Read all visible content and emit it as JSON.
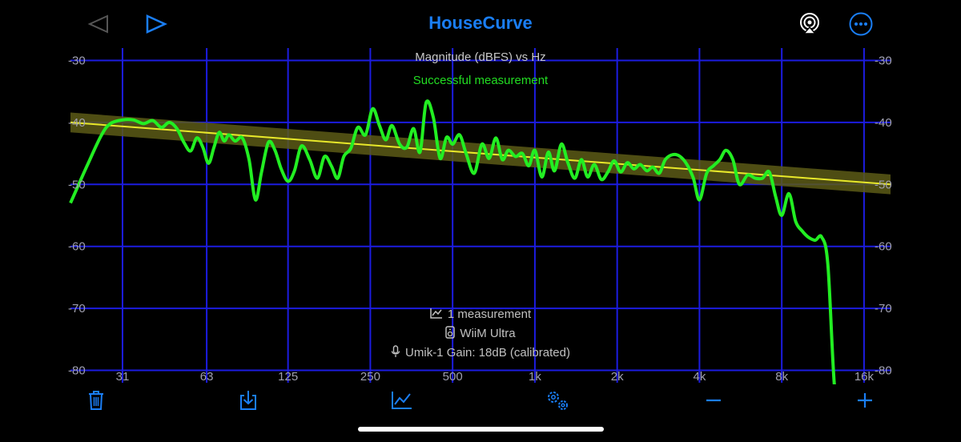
{
  "app": {
    "title": "HouseCurve"
  },
  "icons": {
    "back": "triangle-left-icon",
    "forward": "triangle-right-icon",
    "airplay": "airplay-icon",
    "more": "more-ellipsis-icon",
    "trash": "trash-icon",
    "save": "download-tray-icon",
    "measurements": "chart-line-icon",
    "settings": "gears-icon",
    "zoom_out": "minus-icon",
    "zoom_in": "plus-icon",
    "measurement_info": "chart-small-icon",
    "device_info": "speaker-icon",
    "mic_info": "microphone-icon"
  },
  "colors": {
    "accent": "#1a7ef5",
    "grid": "#1c1ce0",
    "measurement": "#22ee22",
    "target": "#e8e82a",
    "target_band": "#5c5a16",
    "status": "#22dd22"
  },
  "info": {
    "measurement_count": "1 measurement",
    "device": "WiiM Ultra",
    "mic": "Umik-1  Gain: 18dB (calibrated)"
  },
  "chart_data": {
    "type": "line",
    "title": "Magnitude (dBFS) vs Hz",
    "status": "Successful measurement",
    "x_scale": "log",
    "xlim": [
      20,
      20000
    ],
    "ylim": [
      -82,
      -28
    ],
    "x_ticks": [
      {
        "value": 31,
        "label": "31"
      },
      {
        "value": 63,
        "label": "63"
      },
      {
        "value": 125,
        "label": "125"
      },
      {
        "value": 250,
        "label": "250"
      },
      {
        "value": 500,
        "label": "500"
      },
      {
        "value": 1000,
        "label": "1k"
      },
      {
        "value": 2000,
        "label": "2k"
      },
      {
        "value": 4000,
        "label": "4k"
      },
      {
        "value": 8000,
        "label": "8k"
      },
      {
        "value": 16000,
        "label": "16k"
      }
    ],
    "y_ticks": [
      -30,
      -40,
      -50,
      -60,
      -70,
      -80
    ],
    "grid": true,
    "series": [
      {
        "role": "target",
        "x": [
          20,
          20000
        ],
        "y": [
          -40,
          -50
        ],
        "band": 1.6
      },
      {
        "role": "measurement",
        "x": [
          20,
          23,
          26,
          28,
          31,
          34,
          37,
          40,
          43,
          46,
          49,
          52,
          55,
          58,
          61,
          64,
          67,
          70,
          73,
          76,
          80,
          85,
          90,
          95,
          100,
          106,
          112,
          118,
          125,
          132,
          140,
          150,
          160,
          170,
          180,
          190,
          200,
          212,
          225,
          240,
          255,
          270,
          285,
          300,
          320,
          340,
          360,
          380,
          400,
          425,
          450,
          475,
          500,
          530,
          560,
          600,
          640,
          680,
          720,
          760,
          800,
          850,
          900,
          950,
          1000,
          1060,
          1120,
          1180,
          1250,
          1320,
          1400,
          1480,
          1560,
          1650,
          1750,
          1850,
          1950,
          2060,
          2180,
          2300,
          2430,
          2570,
          2700,
          2850,
          3000,
          3200,
          3400,
          3600,
          3800,
          4000,
          4250,
          4500,
          4750,
          5000,
          5300,
          5600,
          6000,
          6400,
          6800,
          7200,
          7600,
          8000,
          8500,
          9000,
          9500,
          10000,
          10600,
          11200,
          11800,
          12500,
          13200,
          14000,
          15000,
          16000,
          17000,
          18000,
          19000,
          20000
        ],
        "y": [
          -53,
          -47,
          -42,
          -40.2,
          -39.6,
          -39.6,
          -40.2,
          -39.7,
          -40.8,
          -40.0,
          -41.0,
          -43.2,
          -44.6,
          -42.5,
          -44.0,
          -46.6,
          -44.0,
          -41.6,
          -43.0,
          -42.0,
          -43.0,
          -42.5,
          -46.0,
          -52.5,
          -48.0,
          -43.2,
          -44.5,
          -47.5,
          -49.5,
          -47.8,
          -43.8,
          -46.0,
          -49.0,
          -45.5,
          -47.0,
          -49.0,
          -45.5,
          -44.2,
          -40.8,
          -42.0,
          -37.8,
          -40.5,
          -42.8,
          -40.5,
          -43.5,
          -44.0,
          -41.0,
          -44.8,
          -36.8,
          -39.2,
          -45.8,
          -42.4,
          -43.5,
          -42.0,
          -45.0,
          -48.2,
          -43.5,
          -45.8,
          -42.5,
          -46.0,
          -44.5,
          -45.5,
          -45.0,
          -47.0,
          -44.5,
          -48.8,
          -44.8,
          -47.8,
          -43.5,
          -46.5,
          -49.0,
          -46.0,
          -48.8,
          -46.8,
          -49.2,
          -48.0,
          -46.2,
          -48.0,
          -46.5,
          -47.5,
          -46.8,
          -47.8,
          -47.2,
          -48.2,
          -46.0,
          -45.2,
          -45.5,
          -46.8,
          -49.0,
          -52.5,
          -48.2,
          -47.0,
          -46.0,
          -44.5,
          -46.0,
          -50.0,
          -48.5,
          -49.0,
          -49.0,
          -48.0,
          -52.0,
          -55.0,
          -51.5,
          -56.0,
          -57.5,
          -58.5,
          -59.0,
          -58.5,
          -63.0,
          -83.0,
          -83.0,
          -83.0,
          -83.0,
          -83.0,
          -83.0,
          -83.0,
          -83.0,
          -83.0
        ]
      }
    ]
  }
}
